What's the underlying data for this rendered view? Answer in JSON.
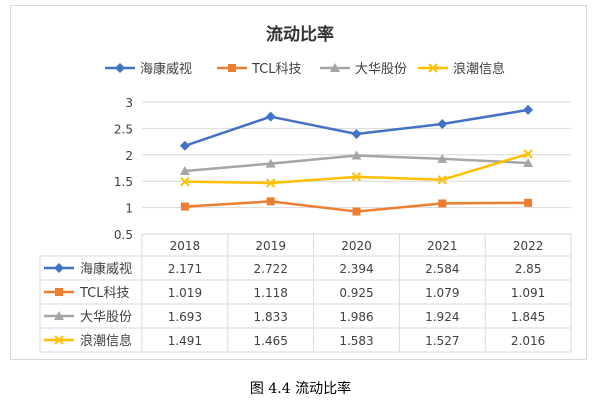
{
  "caption": "图 4.4 流动比率",
  "colors": {
    "海康威视": "#4472c4",
    "TCL科技": "#ed7d31",
    "大华股份": "#a5a5a5",
    "浪潮信息": "#ffc000",
    "grid": "#d9d9d9",
    "text": "#404040"
  },
  "chart_data": {
    "type": "line",
    "title": "流动比率",
    "categories": [
      "2018",
      "2019",
      "2020",
      "2021",
      "2022"
    ],
    "ylim": [
      0.5,
      3
    ],
    "yticks": [
      "0.5",
      "1",
      "1.5",
      "2",
      "2.5",
      "3"
    ],
    "grid": true,
    "legend_position": "top",
    "data_table": true,
    "series": [
      {
        "name": "海康威视",
        "marker": "diamond",
        "values": [
          2.171,
          2.722,
          2.394,
          2.584,
          2.85
        ],
        "labels": [
          "2.171",
          "2.722",
          "2.394",
          "2.584",
          "2.85"
        ]
      },
      {
        "name": "TCL科技",
        "marker": "square",
        "values": [
          1.019,
          1.118,
          0.925,
          1.079,
          1.091
        ],
        "labels": [
          "1.019",
          "1.118",
          "0.925",
          "1.079",
          "1.091"
        ]
      },
      {
        "name": "大华股份",
        "marker": "triangle",
        "values": [
          1.693,
          1.833,
          1.986,
          1.924,
          1.845
        ],
        "labels": [
          "1.693",
          "1.833",
          "1.986",
          "1.924",
          "1.845"
        ]
      },
      {
        "name": "浪潮信息",
        "marker": "x",
        "values": [
          1.491,
          1.465,
          1.583,
          1.527,
          2.016
        ],
        "labels": [
          "1.491",
          "1.465",
          "1.583",
          "1.527",
          "2.016"
        ]
      }
    ]
  }
}
